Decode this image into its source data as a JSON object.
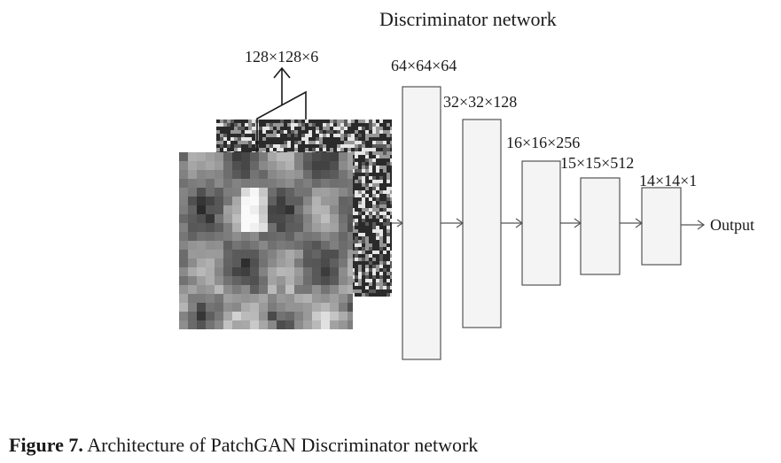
{
  "title": "Discriminator network",
  "input_label": "128×128×6",
  "layers": [
    {
      "label": "64×64×64"
    },
    {
      "label": "32×32×128"
    },
    {
      "label": "16×16×256"
    },
    {
      "label": "15×15×512"
    },
    {
      "label": "14×14×1"
    }
  ],
  "output_label": "Output",
  "caption": {
    "prefix": "Figure 7.",
    "text": " Architecture of PatchGAN Discriminator network"
  },
  "colors": {
    "layer_fill": "#f4f4f4",
    "stroke": "#555555"
  }
}
